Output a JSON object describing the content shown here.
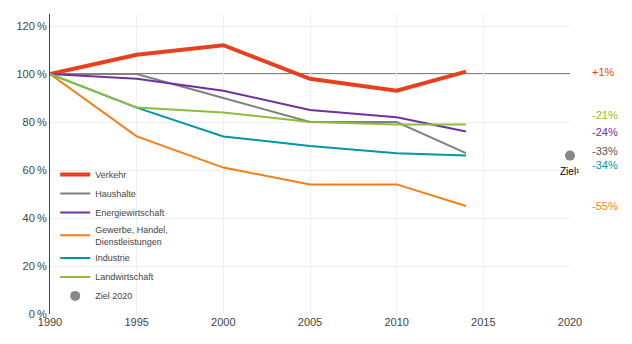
{
  "chart_data": {
    "type": "line",
    "x": [
      1990,
      1995,
      2000,
      2005,
      2010,
      2014
    ],
    "series": [
      {
        "name": "Verkehr",
        "color": "#e8401c",
        "values": [
          100,
          108,
          112,
          98,
          93,
          101
        ]
      },
      {
        "name": "Haushalte",
        "color": "#808080",
        "values": [
          100,
          100,
          90,
          80,
          80,
          67
        ]
      },
      {
        "name": "Energiewirtschaft",
        "color": "#7030a0",
        "values": [
          100,
          98,
          93,
          85,
          82,
          76
        ]
      },
      {
        "name": "Gewerbe, Handel,\nDienstleistungen",
        "color": "#f57f17",
        "values": [
          100,
          74,
          61,
          54,
          54,
          45
        ]
      },
      {
        "name": "Industrie",
        "color": "#0097a7",
        "values": [
          100,
          86,
          74,
          70,
          67,
          66
        ]
      },
      {
        "name": "Landwirtschaft",
        "color": "#8fbc3b",
        "values": [
          100,
          86,
          84,
          80,
          79,
          79
        ]
      },
      {
        "name": "Ziel 2020",
        "type": "scatter",
        "marker": "circle",
        "color": "#888888",
        "x": [
          2020
        ],
        "values": [
          66
        ],
        "label": "Ziel¹"
      }
    ],
    "annotations": [
      {
        "text": "+1%",
        "color": "#e8401c",
        "y": 101
      },
      {
        "text": "-21%",
        "color": "#8fbc3b",
        "y": 83
      },
      {
        "text": "-24%",
        "color": "#7030a0",
        "y": 76
      },
      {
        "text": "-33%",
        "color": "#555555",
        "y": 68
      },
      {
        "text": "-34%",
        "color": "#0097a7",
        "y": 62
      },
      {
        "text": "-55%",
        "color": "#f57f17",
        "y": 45
      }
    ],
    "reference_line": 100,
    "xlim": [
      1990,
      2020
    ],
    "ylim": [
      0,
      125
    ],
    "xticks": [
      1990,
      1995,
      2000,
      2005,
      2010,
      2015,
      2020
    ],
    "yticks": [
      {
        "value": 0,
        "label": "0 %"
      },
      {
        "value": 20,
        "label": "20 %"
      },
      {
        "value": 40,
        "label": "40 %"
      },
      {
        "value": 60,
        "label": "60 %"
      },
      {
        "value": 80,
        "label": "80 %"
      },
      {
        "value": 100,
        "label": "100 %"
      },
      {
        "value": 120,
        "label": "120 %"
      }
    ],
    "grid": true,
    "legend": "lower left"
  }
}
